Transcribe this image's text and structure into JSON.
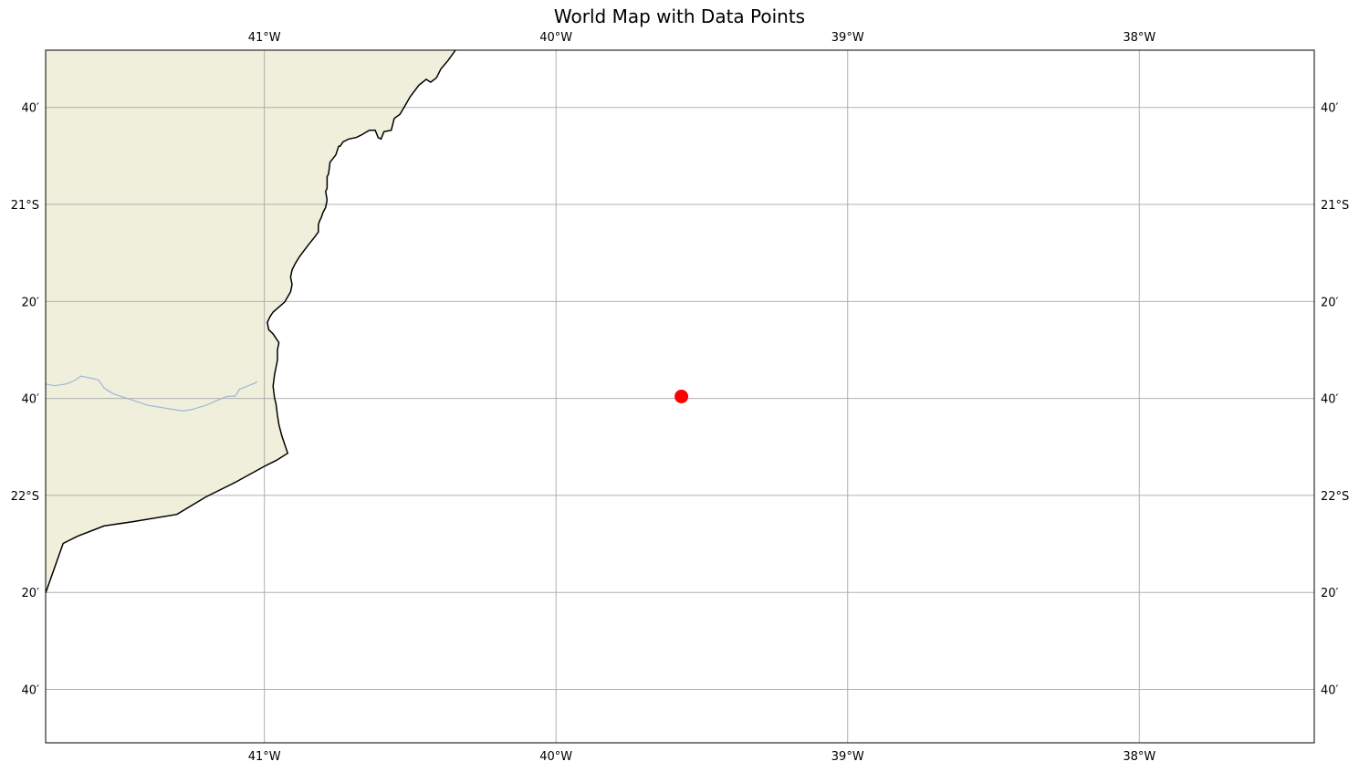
{
  "title": "World Map with Data Points",
  "map": {
    "extent": {
      "lon_min": -41.75,
      "lon_max": -37.4,
      "lat_min": -22.85,
      "lat_max": -20.47
    },
    "land_color": "#efefdb",
    "ocean_color": "#ffffff",
    "coastline_color": "#000000",
    "river_color": "#9db7db",
    "gridline_color": "#b0b0b0",
    "gridlines": true
  },
  "lon_ticks": [
    {
      "value": -41,
      "label": "41°W"
    },
    {
      "value": -40,
      "label": "40°W"
    },
    {
      "value": -39,
      "label": "39°W"
    },
    {
      "value": -38,
      "label": "38°W"
    }
  ],
  "lat_ticks": [
    {
      "value": -20.6667,
      "label": "40′"
    },
    {
      "value": -21.0,
      "label": "21°S"
    },
    {
      "value": -21.3333,
      "label": "20′"
    },
    {
      "value": -21.6667,
      "label": "40′"
    },
    {
      "value": -22.0,
      "label": "22°S"
    },
    {
      "value": -22.3333,
      "label": "20′"
    },
    {
      "value": -22.6667,
      "label": "40′"
    }
  ],
  "chart_data": {
    "type": "scatter",
    "title": "World Map with Data Points",
    "xlim": [
      -41.75,
      -37.4
    ],
    "ylim": [
      -22.85,
      -20.47
    ],
    "grid": true,
    "points": [
      {
        "lon": -39.57,
        "lat": -21.66,
        "color": "#ff0000"
      }
    ]
  },
  "coastline": [
    [
      -40.345,
      -20.47
    ],
    [
      -40.37,
      -20.505
    ],
    [
      -40.395,
      -20.535
    ],
    [
      -40.41,
      -20.565
    ],
    [
      -40.43,
      -20.58
    ],
    [
      -40.445,
      -20.57
    ],
    [
      -40.47,
      -20.59
    ],
    [
      -40.5,
      -20.63
    ],
    [
      -40.52,
      -20.665
    ],
    [
      -40.535,
      -20.69
    ],
    [
      -40.555,
      -20.705
    ],
    [
      -40.565,
      -20.745
    ],
    [
      -40.59,
      -20.75
    ],
    [
      -40.6,
      -20.775
    ],
    [
      -40.61,
      -20.77
    ],
    [
      -40.62,
      -20.745
    ],
    [
      -40.64,
      -20.745
    ],
    [
      -40.665,
      -20.76
    ],
    [
      -40.685,
      -20.77
    ],
    [
      -40.71,
      -20.775
    ],
    [
      -40.73,
      -20.785
    ],
    [
      -40.74,
      -20.8
    ],
    [
      -40.745,
      -20.8
    ],
    [
      -40.755,
      -20.83
    ],
    [
      -40.775,
      -20.855
    ],
    [
      -40.78,
      -20.895
    ],
    [
      -40.785,
      -20.905
    ],
    [
      -40.785,
      -20.945
    ],
    [
      -40.79,
      -20.955
    ],
    [
      -40.785,
      -20.985
    ],
    [
      -40.79,
      -21.01
    ],
    [
      -40.8,
      -21.03
    ],
    [
      -40.805,
      -21.045
    ],
    [
      -40.81,
      -21.055
    ],
    [
      -40.815,
      -21.07
    ],
    [
      -40.815,
      -21.095
    ],
    [
      -40.83,
      -21.115
    ],
    [
      -40.85,
      -21.14
    ],
    [
      -40.88,
      -21.18
    ],
    [
      -40.895,
      -21.205
    ],
    [
      -40.905,
      -21.225
    ],
    [
      -40.91,
      -21.25
    ],
    [
      -40.905,
      -21.275
    ],
    [
      -40.91,
      -21.3
    ],
    [
      -40.93,
      -21.335
    ],
    [
      -40.97,
      -21.37
    ],
    [
      -40.98,
      -21.385
    ],
    [
      -40.99,
      -21.405
    ],
    [
      -40.985,
      -21.43
    ],
    [
      -40.97,
      -21.445
    ],
    [
      -40.96,
      -21.46
    ],
    [
      -40.95,
      -21.475
    ],
    [
      -40.955,
      -21.5
    ],
    [
      -40.955,
      -21.535
    ],
    [
      -40.965,
      -21.585
    ],
    [
      -40.97,
      -21.625
    ],
    [
      -40.965,
      -21.665
    ],
    [
      -40.96,
      -21.685
    ],
    [
      -40.955,
      -21.725
    ],
    [
      -40.95,
      -21.757
    ],
    [
      -40.94,
      -21.795
    ],
    [
      -40.93,
      -21.825
    ],
    [
      -40.92,
      -21.855
    ],
    [
      -40.96,
      -21.88
    ],
    [
      -41.0,
      -21.9
    ],
    [
      -41.1,
      -21.955
    ],
    [
      -41.2,
      -22.005
    ],
    [
      -41.3,
      -22.065
    ],
    [
      -41.45,
      -22.09
    ],
    [
      -41.55,
      -22.105
    ],
    [
      -41.64,
      -22.14
    ],
    [
      -41.69,
      -22.165
    ],
    [
      -41.75,
      -22.335
    ]
  ],
  "river": [
    [
      -41.75,
      -21.617
    ],
    [
      -41.72,
      -21.623
    ],
    [
      -41.68,
      -21.617
    ],
    [
      -41.65,
      -21.605
    ],
    [
      -41.63,
      -21.59
    ],
    [
      -41.57,
      -21.602
    ],
    [
      -41.55,
      -21.63
    ],
    [
      -41.52,
      -21.65
    ],
    [
      -41.4,
      -21.69
    ],
    [
      -41.28,
      -21.71
    ],
    [
      -41.25,
      -21.705
    ],
    [
      -41.2,
      -21.69
    ],
    [
      -41.13,
      -21.66
    ],
    [
      -41.1,
      -21.658
    ],
    [
      -41.085,
      -21.635
    ],
    [
      -41.04,
      -21.617
    ],
    [
      -41.025,
      -21.61
    ]
  ]
}
